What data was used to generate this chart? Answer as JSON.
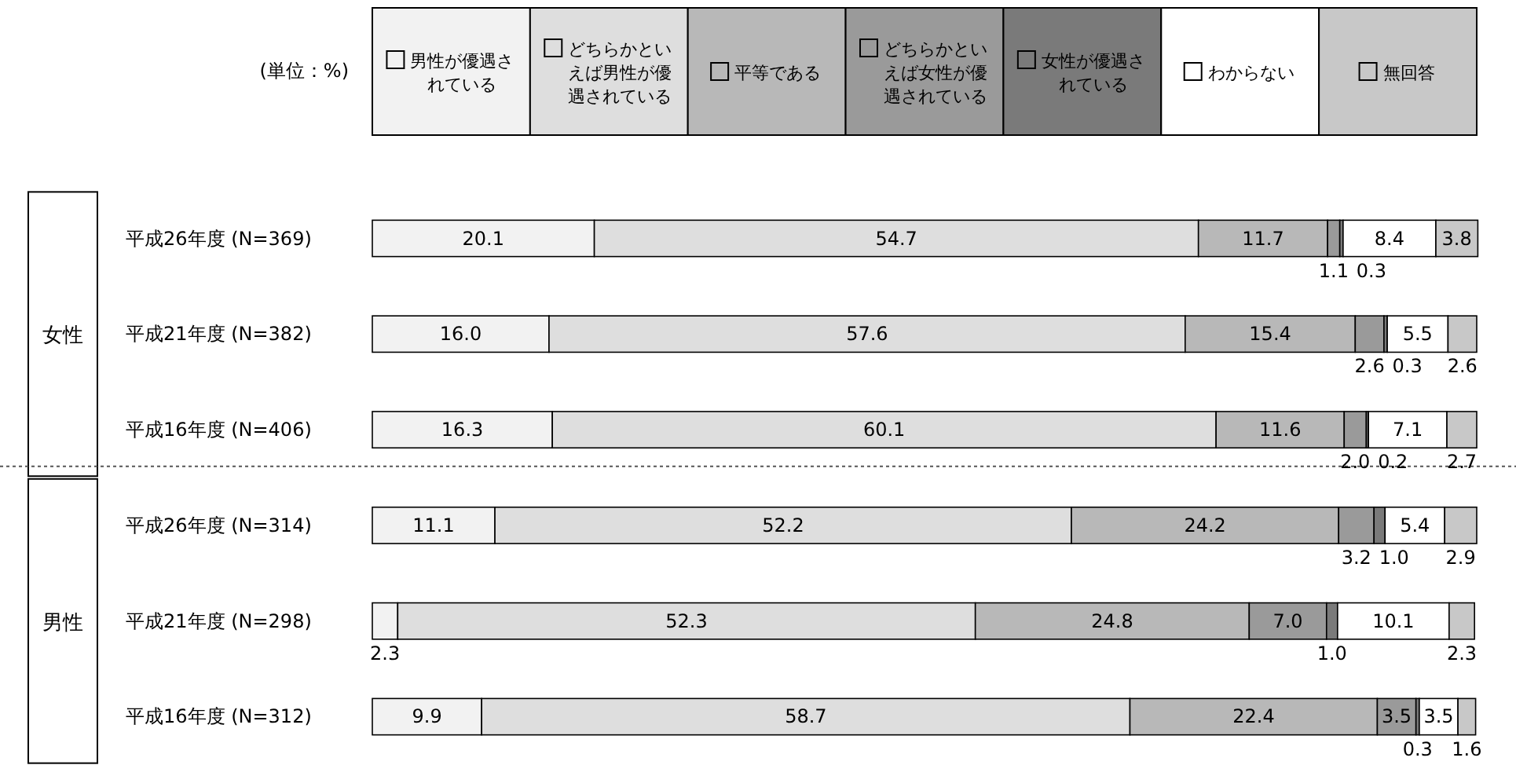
{
  "chart_data": {
    "type": "bar",
    "orientation": "horizontal",
    "stacked": true,
    "legend": "top",
    "tick_labels": "y",
    "xlim": [
      0,
      100
    ],
    "categories": [
      "平成26年度 (N=369)",
      "平成21年度 (N=382)",
      "平成16年度 (N=406)",
      "平成26年度 (N=314)",
      "平成21年度 (N=298)",
      "平成16年度 (N=312)"
    ],
    "series": [
      {
        "name": "男性が優遇されている",
        "color": "#f2f2f2",
        "values": [
          20.1,
          16.0,
          16.3,
          11.1,
          2.3,
          9.9
        ],
        "value_labels": [
          "20.1",
          "16.0",
          "16.3",
          "11.1",
          "2.3",
          "9.9"
        ]
      },
      {
        "name": "どちらかといえば男性が優遇されている",
        "color": "#dedede",
        "values": [
          54.7,
          57.6,
          60.1,
          52.2,
          52.3,
          58.7
        ],
        "value_labels": [
          "54.7",
          "57.6",
          "60.1",
          "52.2",
          "52.3",
          "58.7"
        ]
      },
      {
        "name": "平等である",
        "color": "#b8b8b8",
        "values": [
          11.7,
          15.4,
          11.6,
          24.2,
          24.8,
          22.4
        ],
        "value_labels": [
          "11.7",
          "15.4",
          "11.6",
          "24.2",
          "24.8",
          "22.4"
        ]
      },
      {
        "name": "どちらかといえば女性が優遇されている",
        "color": "#9a9a9a",
        "values": [
          1.1,
          2.6,
          2.0,
          3.2,
          7.0,
          3.5
        ],
        "value_labels": [
          "1.1",
          "2.6",
          "2.0",
          "3.2",
          "7.0",
          "3.5"
        ]
      },
      {
        "name": "女性が優遇されている",
        "color": "#7a7a7a",
        "values": [
          0.3,
          0.3,
          0.2,
          1.0,
          1.0,
          0.3
        ],
        "value_labels": [
          "0.3",
          "0.3",
          "0.2",
          "1.0",
          "1.0",
          "0.3"
        ]
      },
      {
        "name": "わからない",
        "color": "#ffffff",
        "values": [
          8.4,
          5.5,
          7.1,
          5.4,
          10.1,
          3.5
        ],
        "value_labels": [
          "8.4",
          "5.5",
          "7.1",
          "5.4",
          "10.1",
          "3.5"
        ]
      },
      {
        "name": "無回答",
        "color": "#c8c8c8",
        "values": [
          3.8,
          2.6,
          2.7,
          2.9,
          2.3,
          1.6
        ],
        "value_labels": [
          "3.8",
          "2.6",
          "2.7",
          "2.9",
          "2.3",
          "1.6"
        ]
      }
    ],
    "annotations": [
      "(単位：%)",
      "女性",
      "男性"
    ]
  }
}
